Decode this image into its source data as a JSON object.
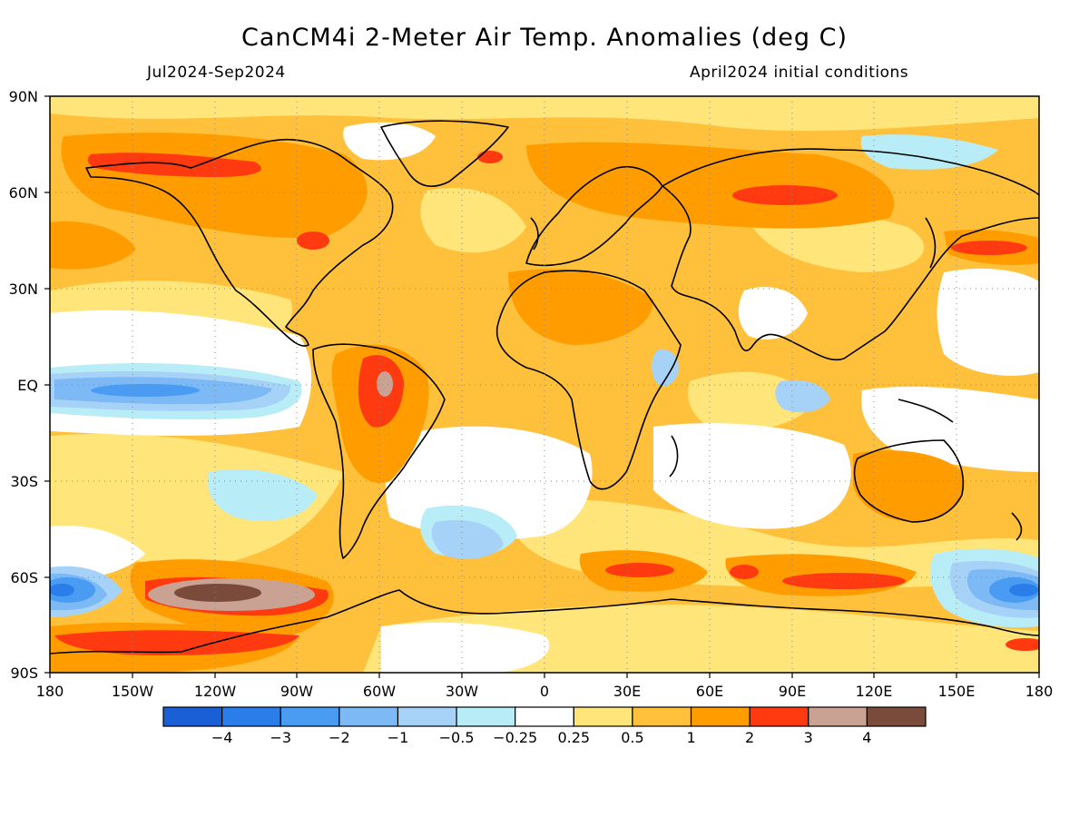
{
  "title": "CanCM4i 2-Meter Air Temp. Anomalies (deg C)",
  "period": "Jul2024-Sep2024",
  "initial_conditions": "April2024 initial conditions",
  "lat_labels": [
    "90N",
    "60N",
    "30N",
    "EQ",
    "30S",
    "60S",
    "90S"
  ],
  "lon_labels": [
    "180",
    "150W",
    "120W",
    "90W",
    "60W",
    "30W",
    "0",
    "30E",
    "60E",
    "90E",
    "120E",
    "150E",
    "180"
  ],
  "colorbar": {
    "colors": [
      "#1a5fd6",
      "#2b7de9",
      "#4a9bf2",
      "#7cb9f5",
      "#a7d2f7",
      "#b8ecf7",
      "#ffffff",
      "#ffe57a",
      "#ffc13c",
      "#ff9d00",
      "#ff3a10",
      "#c9a294",
      "#7a4a3a"
    ],
    "labels": [
      "-4",
      "-3",
      "-2",
      "-1",
      "-0.5",
      "-0.25",
      "0.25",
      "0.5",
      "1",
      "2",
      "3",
      "4"
    ]
  },
  "map_colors": {
    "base": "#ffc13c",
    "light": "#ffe57a",
    "white": "#ffffff",
    "cyan": "#b8ecf7",
    "lightblue": "#a7d2f7",
    "blue": "#7cb9f5",
    "midblue": "#4a9bf2",
    "deepblue": "#2b7de9",
    "orange": "#ff9d00",
    "red": "#ff3a10",
    "pink": "#c9a294",
    "brown": "#7a4a3a"
  }
}
